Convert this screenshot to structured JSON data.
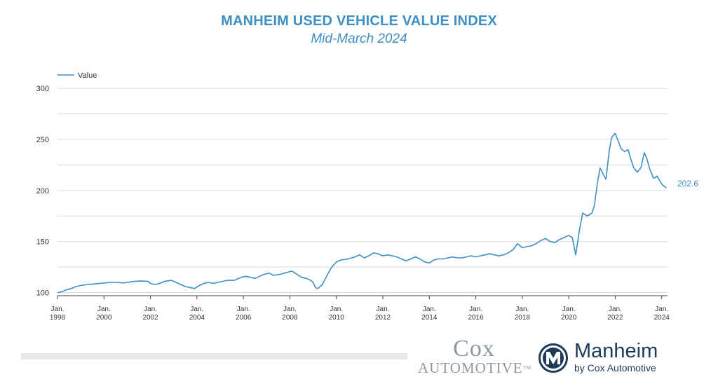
{
  "chart_data": {
    "type": "line",
    "title": "MANHEIM USED VEHICLE VALUE INDEX",
    "subtitle": "Mid-March 2024",
    "legend": "top-left",
    "grid": true,
    "y_ticks": [
      100,
      150,
      200,
      250,
      300
    ],
    "ylim": [
      97,
      300
    ],
    "xlim": [
      1998.0,
      2024.25
    ],
    "x_ticks": [
      {
        "year": 1998,
        "label_1": "Jan.",
        "label_2": "1998"
      },
      {
        "year": 2000,
        "label_1": "Jan.",
        "label_2": "2000"
      },
      {
        "year": 2002,
        "label_1": "Jan.",
        "label_2": "2002"
      },
      {
        "year": 2004,
        "label_1": "Jan.",
        "label_2": "2004"
      },
      {
        "year": 2006,
        "label_1": "Jan.",
        "label_2": "2006"
      },
      {
        "year": 2008,
        "label_1": "Jan.",
        "label_2": "2008"
      },
      {
        "year": 2010,
        "label_1": "Jan.",
        "label_2": "2010"
      },
      {
        "year": 2012,
        "label_1": "Jan.",
        "label_2": "2012"
      },
      {
        "year": 2014,
        "label_1": "Jan.",
        "label_2": "2014"
      },
      {
        "year": 2016,
        "label_1": "Jan.",
        "label_2": "2016"
      },
      {
        "year": 2018,
        "label_1": "Jan.",
        "label_2": "2018"
      },
      {
        "year": 2020,
        "label_1": "Jan.",
        "label_2": "2020"
      },
      {
        "year": 2022,
        "label_1": "Jan.",
        "label_2": "2022"
      },
      {
        "year": 2024,
        "label_1": "Jan.",
        "label_2": "2024"
      }
    ],
    "end_label": "202.6",
    "series": [
      {
        "name": "Value",
        "color": "#3d8fc4",
        "points": [
          [
            1998.0,
            100
          ],
          [
            1998.2,
            101
          ],
          [
            1998.4,
            103
          ],
          [
            1998.6,
            104
          ],
          [
            1998.8,
            106
          ],
          [
            1999.0,
            107
          ],
          [
            1999.3,
            108
          ],
          [
            1999.6,
            108.5
          ],
          [
            1999.8,
            109
          ],
          [
            2000.0,
            109.5
          ],
          [
            2000.3,
            110
          ],
          [
            2000.6,
            110
          ],
          [
            2000.8,
            109.5
          ],
          [
            2001.0,
            110
          ],
          [
            2001.3,
            111
          ],
          [
            2001.6,
            111.5
          ],
          [
            2001.9,
            111
          ],
          [
            2002.0,
            109
          ],
          [
            2002.2,
            108
          ],
          [
            2002.4,
            109
          ],
          [
            2002.6,
            111
          ],
          [
            2002.9,
            112
          ],
          [
            2003.1,
            110
          ],
          [
            2003.3,
            108
          ],
          [
            2003.5,
            106
          ],
          [
            2003.7,
            105
          ],
          [
            2003.9,
            104
          ],
          [
            2004.1,
            107
          ],
          [
            2004.3,
            109
          ],
          [
            2004.5,
            110
          ],
          [
            2004.7,
            109
          ],
          [
            2004.9,
            110
          ],
          [
            2005.1,
            111
          ],
          [
            2005.3,
            112
          ],
          [
            2005.6,
            112
          ],
          [
            2005.9,
            115
          ],
          [
            2006.1,
            116
          ],
          [
            2006.3,
            115
          ],
          [
            2006.5,
            114
          ],
          [
            2006.7,
            116
          ],
          [
            2006.9,
            118
          ],
          [
            2007.1,
            119
          ],
          [
            2007.3,
            117
          ],
          [
            2007.6,
            118
          ],
          [
            2007.9,
            120
          ],
          [
            2008.1,
            121
          ],
          [
            2008.3,
            118
          ],
          [
            2008.5,
            115
          ],
          [
            2008.7,
            114
          ],
          [
            2008.9,
            112
          ],
          [
            2009.0,
            110
          ],
          [
            2009.1,
            105
          ],
          [
            2009.2,
            104
          ],
          [
            2009.4,
            108
          ],
          [
            2009.6,
            117
          ],
          [
            2009.8,
            125
          ],
          [
            2010.0,
            130
          ],
          [
            2010.2,
            132
          ],
          [
            2010.5,
            133
          ],
          [
            2010.8,
            135
          ],
          [
            2011.0,
            137
          ],
          [
            2011.2,
            134
          ],
          [
            2011.4,
            136
          ],
          [
            2011.6,
            139
          ],
          [
            2011.8,
            138
          ],
          [
            2012.0,
            136
          ],
          [
            2012.2,
            137
          ],
          [
            2012.4,
            136
          ],
          [
            2012.6,
            135
          ],
          [
            2012.8,
            133
          ],
          [
            2013.0,
            131
          ],
          [
            2013.2,
            133
          ],
          [
            2013.4,
            135
          ],
          [
            2013.6,
            133
          ],
          [
            2013.8,
            130
          ],
          [
            2014.0,
            129
          ],
          [
            2014.2,
            132
          ],
          [
            2014.4,
            133
          ],
          [
            2014.6,
            133
          ],
          [
            2014.8,
            134
          ],
          [
            2015.0,
            135
          ],
          [
            2015.2,
            134
          ],
          [
            2015.4,
            134
          ],
          [
            2015.6,
            135
          ],
          [
            2015.8,
            136
          ],
          [
            2016.0,
            135
          ],
          [
            2016.2,
            136
          ],
          [
            2016.4,
            137
          ],
          [
            2016.6,
            138
          ],
          [
            2016.8,
            137
          ],
          [
            2017.0,
            136
          ],
          [
            2017.2,
            137
          ],
          [
            2017.4,
            139
          ],
          [
            2017.6,
            142
          ],
          [
            2017.8,
            148
          ],
          [
            2018.0,
            144
          ],
          [
            2018.2,
            145
          ],
          [
            2018.4,
            146
          ],
          [
            2018.6,
            148
          ],
          [
            2018.8,
            151
          ],
          [
            2019.0,
            153
          ],
          [
            2019.2,
            150
          ],
          [
            2019.4,
            149
          ],
          [
            2019.6,
            152
          ],
          [
            2019.8,
            154
          ],
          [
            2020.0,
            156
          ],
          [
            2020.15,
            154
          ],
          [
            2020.3,
            137
          ],
          [
            2020.45,
            160
          ],
          [
            2020.6,
            178
          ],
          [
            2020.8,
            175
          ],
          [
            2021.0,
            178
          ],
          [
            2021.1,
            185
          ],
          [
            2021.25,
            210
          ],
          [
            2021.35,
            222
          ],
          [
            2021.5,
            215
          ],
          [
            2021.6,
            211
          ],
          [
            2021.75,
            240
          ],
          [
            2021.85,
            252
          ],
          [
            2022.0,
            256
          ],
          [
            2022.1,
            250
          ],
          [
            2022.25,
            241
          ],
          [
            2022.4,
            238
          ],
          [
            2022.55,
            240
          ],
          [
            2022.65,
            232
          ],
          [
            2022.8,
            222
          ],
          [
            2022.95,
            218
          ],
          [
            2023.1,
            222
          ],
          [
            2023.25,
            237
          ],
          [
            2023.35,
            232
          ],
          [
            2023.5,
            220
          ],
          [
            2023.65,
            212
          ],
          [
            2023.8,
            214
          ],
          [
            2023.95,
            208
          ],
          [
            2024.05,
            205
          ],
          [
            2024.2,
            202.6
          ]
        ]
      }
    ]
  },
  "footer": {
    "cox_line1": "Cox",
    "cox_line2": "AUTOMOTIVE",
    "cox_tm": "TM",
    "manheim_line1": "Manheim",
    "manheim_line2": "by Cox Automotive"
  }
}
